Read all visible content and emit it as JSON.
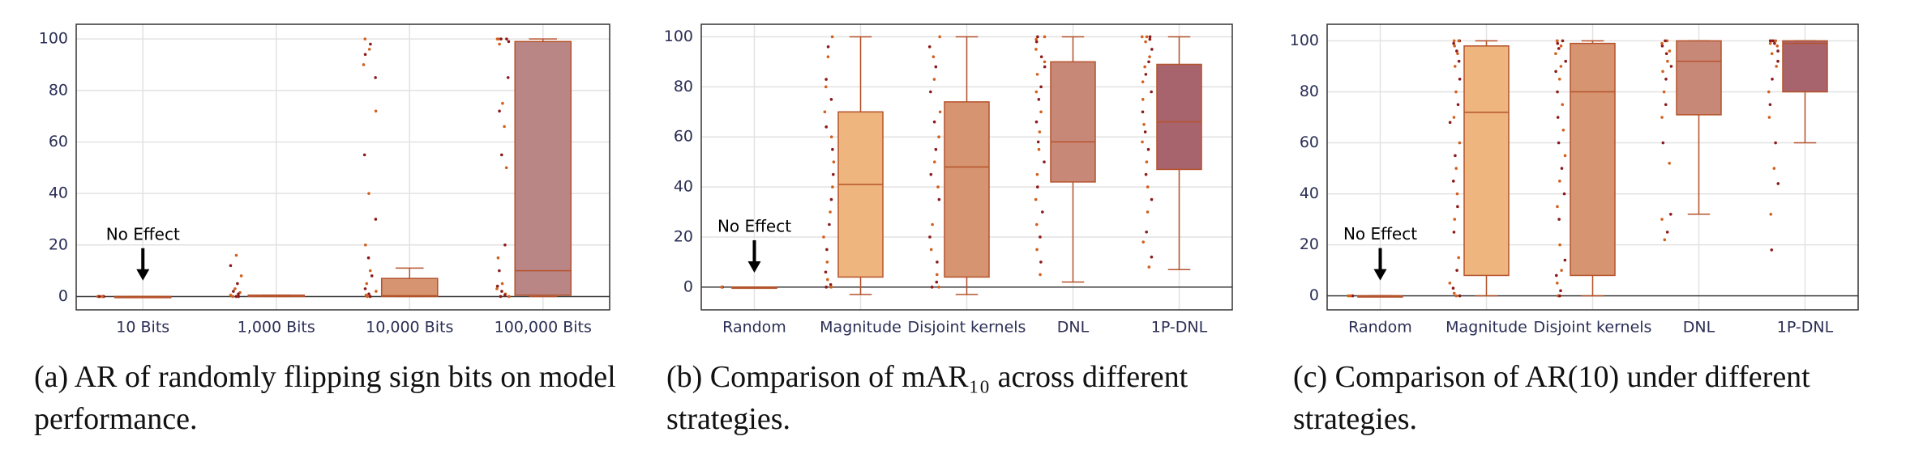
{
  "chart_data": [
    {
      "type": "box",
      "caption": "(a) AR of randomly flipping sign bits on model performance.",
      "categories": [
        "10 Bits",
        "1,000 Bits",
        "10,000 Bits",
        "100,000 Bits"
      ],
      "boxes": [
        {
          "whislo": 0,
          "q1": 0,
          "med": 0,
          "q3": 0,
          "whishi": 0,
          "color": "#f2b06e"
        },
        {
          "whislo": 0,
          "q1": 0,
          "med": 0.2,
          "q3": 0.5,
          "whishi": 0.5,
          "color": "#e9a26e"
        },
        {
          "whislo": 0,
          "q1": 0,
          "med": 0.3,
          "q3": 7,
          "whishi": 11,
          "color": "#d69470"
        },
        {
          "whislo": 0,
          "q1": 0.5,
          "med": 10,
          "q3": 99,
          "whishi": 100,
          "color": "#b98585"
        }
      ],
      "points": [
        [
          0,
          0,
          0,
          0,
          0
        ],
        [
          16,
          12,
          8,
          5,
          3,
          2,
          1.5,
          1,
          0.5,
          0,
          0,
          0
        ],
        [
          100,
          98,
          96,
          94,
          90,
          85,
          72,
          55,
          40,
          30,
          20,
          15,
          10,
          8,
          5,
          3,
          2,
          1,
          0.5,
          0,
          0
        ],
        [
          100,
          100,
          100,
          100,
          100,
          99,
          98,
          85,
          75,
          72,
          66,
          55,
          50,
          20,
          15,
          10,
          5,
          4,
          3,
          2,
          1,
          0.5,
          0,
          0
        ]
      ],
      "point_colors": [
        "#d0601e",
        "#8b1a1a"
      ],
      "annotation": "No Effect",
      "ylim": [
        -5.2,
        105.7
      ],
      "yticks": [
        0,
        20,
        40,
        60,
        80,
        100
      ],
      "grid": true
    },
    {
      "type": "box",
      "caption": "(b) Comparison of mAR₁₀ across different strategies.",
      "categories": [
        "Random",
        "Magnitude",
        "Disjoint kernels",
        "DNL",
        "1P-DNL"
      ],
      "boxes": [
        {
          "whislo": 0,
          "q1": 0,
          "med": 0,
          "q3": 0,
          "whishi": 0,
          "color": "#f2b06e"
        },
        {
          "whislo": -3,
          "q1": 4,
          "med": 41,
          "q3": 70,
          "whishi": 100,
          "color": "#eeb57e"
        },
        {
          "whislo": -3,
          "q1": 4,
          "med": 48,
          "q3": 74,
          "whishi": 100,
          "color": "#d69470"
        },
        {
          "whislo": 2,
          "q1": 42,
          "med": 58,
          "q3": 90,
          "whishi": 100,
          "color": "#c88878"
        },
        {
          "whislo": 7,
          "q1": 47,
          "med": 66,
          "q3": 89,
          "whishi": 100,
          "color": "#a8646c"
        }
      ],
      "points": [
        [
          0,
          0,
          0
        ],
        [
          100,
          96,
          92,
          83,
          80,
          75,
          70,
          64,
          60,
          55,
          50,
          45,
          40,
          35,
          30,
          25,
          20,
          15,
          10,
          6,
          3,
          1,
          0,
          0
        ],
        [
          100,
          96,
          92,
          88,
          83,
          78,
          70,
          66,
          60,
          55,
          50,
          45,
          40,
          35,
          25,
          20,
          15,
          10,
          5,
          2,
          0,
          0
        ],
        [
          100,
          100,
          99,
          98,
          95,
          92,
          90,
          88,
          85,
          80,
          78,
          75,
          70,
          66,
          62,
          58,
          55,
          50,
          45,
          40,
          35,
          30,
          25,
          20,
          15,
          10,
          5
        ],
        [
          100,
          100,
          100,
          99,
          98,
          95,
          92,
          90,
          88,
          85,
          82,
          78,
          75,
          70,
          65,
          62,
          58,
          55,
          50,
          45,
          40,
          35,
          30,
          22,
          18,
          12,
          8
        ]
      ],
      "point_colors": [
        "#d0601e",
        "#8b1a1a"
      ],
      "annotation": "No Effect",
      "ylim": [
        -9.1,
        105
      ],
      "yticks": [
        0,
        20,
        40,
        60,
        80,
        100
      ],
      "grid": true
    },
    {
      "type": "box",
      "caption": "(c) Comparison of AR(10) under different strategies.",
      "categories": [
        "Random",
        "Magnitude",
        "Disjoint kernels",
        "DNL",
        "1P-DNL"
      ],
      "boxes": [
        {
          "whislo": 0,
          "q1": 0,
          "med": 0,
          "q3": 0,
          "whishi": 0,
          "color": "#f2b06e"
        },
        {
          "whislo": 0,
          "q1": 8,
          "med": 72,
          "q3": 98,
          "whishi": 100,
          "color": "#eeb57e"
        },
        {
          "whislo": 0,
          "q1": 8,
          "med": 80,
          "q3": 99,
          "whishi": 100,
          "color": "#d69470"
        },
        {
          "whislo": 32,
          "q1": 71,
          "med": 92,
          "q3": 100,
          "whishi": 100,
          "color": "#c88878"
        },
        {
          "whislo": 60,
          "q1": 80,
          "med": 99,
          "q3": 100,
          "whishi": 100,
          "color": "#a8646c"
        }
      ],
      "points": [
        [
          0,
          0,
          0
        ],
        [
          100,
          100,
          100,
          99,
          98,
          96,
          95,
          92,
          90,
          85,
          80,
          75,
          70,
          68,
          60,
          55,
          50,
          45,
          40,
          35,
          30,
          25,
          15,
          10,
          5,
          3,
          1,
          0,
          0
        ],
        [
          100,
          100,
          100,
          99,
          98,
          97,
          95,
          92,
          90,
          88,
          85,
          80,
          75,
          70,
          65,
          60,
          55,
          50,
          45,
          40,
          35,
          30,
          20,
          14,
          10,
          8,
          5,
          2,
          0,
          0
        ],
        [
          100,
          100,
          99,
          98,
          96,
          95,
          92,
          90,
          88,
          85,
          80,
          75,
          70,
          60,
          52,
          32,
          30,
          25,
          22
        ],
        [
          100,
          100,
          100,
          100,
          99,
          99,
          98,
          96,
          95,
          92,
          90,
          85,
          80,
          75,
          70,
          60,
          50,
          44,
          32,
          18
        ]
      ],
      "point_colors": [
        "#d0601e",
        "#8b1a1a"
      ],
      "annotation": "No Effect",
      "ylim": [
        -5.5,
        106.5
      ],
      "yticks": [
        0,
        20,
        40,
        60,
        80,
        100
      ],
      "grid": true
    }
  ]
}
